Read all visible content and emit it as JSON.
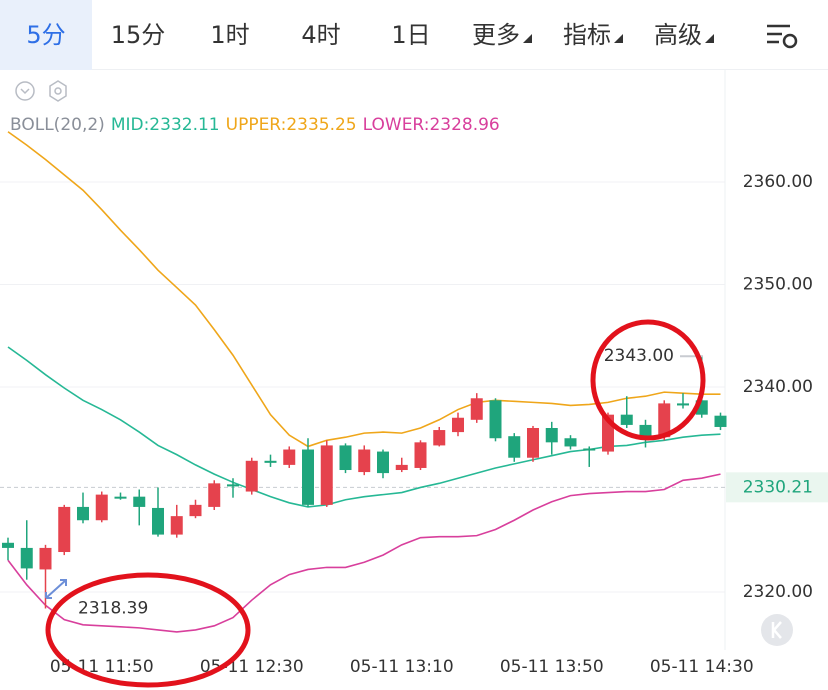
{
  "tabs": [
    "5分",
    "15分",
    "1时",
    "4时",
    "1日",
    "更多",
    "指标",
    "高级"
  ],
  "active_tab": 0,
  "chart_data": {
    "type": "candlestick",
    "categories": [
      null,
      null,
      null,
      null,
      null,
      "05-11 11:50",
      null,
      null,
      null,
      null,
      null,
      null,
      null,
      "05-11 12:30",
      null,
      null,
      null,
      null,
      null,
      null,
      null,
      "05-11 13:10",
      null,
      null,
      null,
      null,
      null,
      null,
      null,
      "05-11 13:50",
      null,
      null,
      null,
      null,
      null,
      null,
      null,
      "05-11 14:30",
      null
    ],
    "open": [
      2324.8,
      2324.3,
      2322.2,
      2323.9,
      2328.3,
      2327.0,
      2329.3,
      2329.3,
      2328.2,
      2325.6,
      2327.4,
      2328.3,
      2330.5,
      2329.8,
      2332.8,
      2332.4,
      2333.9,
      2328.5,
      2334.3,
      2331.7,
      2333.7,
      2331.9,
      2332.1,
      2334.3,
      2335.6,
      2336.8,
      2338.7,
      2335.2,
      2333.1,
      2336.0,
      2335.0,
      2334.0,
      2333.7,
      2337.3,
      2336.3,
      2335.1,
      2338.4,
      2338.7,
      2337.2
    ],
    "high": [
      2325.3,
      2327.0,
      2324.6,
      2328.5,
      2329.7,
      2329.8,
      2329.7,
      2330.0,
      2330.2,
      2328.5,
      2329.0,
      2330.9,
      2331.1,
      2333.1,
      2333.4,
      2334.2,
      2335.0,
      2334.8,
      2334.5,
      2334.3,
      2333.9,
      2333.1,
      2334.8,
      2336.1,
      2337.5,
      2339.4,
      2338.9,
      2335.5,
      2336.2,
      2336.6,
      2335.3,
      2334.2,
      2337.5,
      2339.1,
      2336.8,
      2338.7,
      2339.4,
      2343.0,
      2337.5
    ],
    "low": [
      2323.1,
      2321.2,
      2318.39,
      2323.6,
      2326.7,
      2326.8,
      2329.0,
      2326.5,
      2325.4,
      2325.3,
      2327.2,
      2328.0,
      2329.2,
      2329.5,
      2332.2,
      2332.1,
      2328.3,
      2328.3,
      2331.6,
      2331.4,
      2331.1,
      2331.7,
      2331.9,
      2334.2,
      2335.2,
      2336.5,
      2334.7,
      2332.7,
      2332.7,
      2333.4,
      2333.9,
      2332.2,
      2333.4,
      2336.0,
      2334.1,
      2334.8,
      2337.9,
      2337.0,
      2335.8
    ],
    "close": [
      2324.3,
      2322.3,
      2324.3,
      2328.3,
      2327.0,
      2329.5,
      2329.2,
      2328.3,
      2325.6,
      2327.4,
      2328.5,
      2330.6,
      2330.3,
      2332.8,
      2332.6,
      2333.9,
      2328.5,
      2334.3,
      2331.9,
      2333.9,
      2331.6,
      2332.4,
      2334.6,
      2335.8,
      2337.0,
      2338.9,
      2335.0,
      2333.1,
      2336.0,
      2334.6,
      2334.2,
      2333.8,
      2337.3,
      2336.3,
      2335.0,
      2338.4,
      2338.2,
      2337.3,
      2336.1
    ],
    "up_color": "#e5424d",
    "down_color": "#1fa57c",
    "indicator": "BOLL(20,2)",
    "series": [
      {
        "name": "MID:2332.11",
        "color": "#26b895",
        "values": [
          2343.9,
          2342.6,
          2341.2,
          2339.9,
          2338.7,
          2337.8,
          2336.8,
          2335.6,
          2334.3,
          2333.4,
          2332.4,
          2331.5,
          2330.7,
          2330.0,
          2329.3,
          2328.7,
          2328.3,
          2328.5,
          2329.0,
          2329.3,
          2329.5,
          2329.7,
          2330.2,
          2330.6,
          2331.1,
          2331.6,
          2332.1,
          2332.5,
          2332.9,
          2333.3,
          2333.7,
          2333.9,
          2334.2,
          2334.3,
          2334.6,
          2334.8,
          2335.1,
          2335.3,
          2335.4
        ]
      },
      {
        "name": "UPPER:2335.25",
        "color": "#efa61a",
        "values": [
          2364.9,
          2363.6,
          2362.2,
          2360.7,
          2359.2,
          2357.3,
          2355.3,
          2353.4,
          2351.4,
          2349.7,
          2348.0,
          2345.6,
          2343.1,
          2340.2,
          2337.3,
          2335.3,
          2334.2,
          2334.8,
          2335.1,
          2335.5,
          2335.6,
          2335.5,
          2336.0,
          2336.8,
          2337.8,
          2338.5,
          2338.7,
          2338.6,
          2338.5,
          2338.4,
          2338.2,
          2338.3,
          2338.5,
          2338.9,
          2339.1,
          2339.5,
          2339.4,
          2339.3,
          2339.3
        ]
      },
      {
        "name": "LOWER:2328.96",
        "color": "#d83f9c",
        "values": [
          2323.1,
          2320.7,
          2318.7,
          2317.3,
          2316.8,
          2316.7,
          2316.6,
          2316.5,
          2316.3,
          2316.1,
          2316.3,
          2316.7,
          2317.5,
          2319.2,
          2320.7,
          2321.7,
          2322.2,
          2322.4,
          2322.4,
          2322.9,
          2323.6,
          2324.6,
          2325.3,
          2325.4,
          2325.4,
          2325.5,
          2326.1,
          2327.0,
          2328.0,
          2328.8,
          2329.4,
          2329.6,
          2329.7,
          2329.8,
          2329.8,
          2330.0,
          2330.9,
          2331.1,
          2331.5
        ]
      }
    ],
    "ylim": [
      2314.34,
      2370.44
    ],
    "yticks": [
      {
        "value": 2320,
        "label": "2320.00"
      },
      {
        "value": 2340,
        "label": "2340.00"
      },
      {
        "value": 2350,
        "label": "2350.00"
      },
      {
        "value": 2360,
        "label": "2360.00"
      }
    ],
    "grid": true,
    "current_price": 2330.21,
    "max_label": {
      "value": 2343,
      "label": "2343.00"
    },
    "min_label": 2318.39
  }
}
